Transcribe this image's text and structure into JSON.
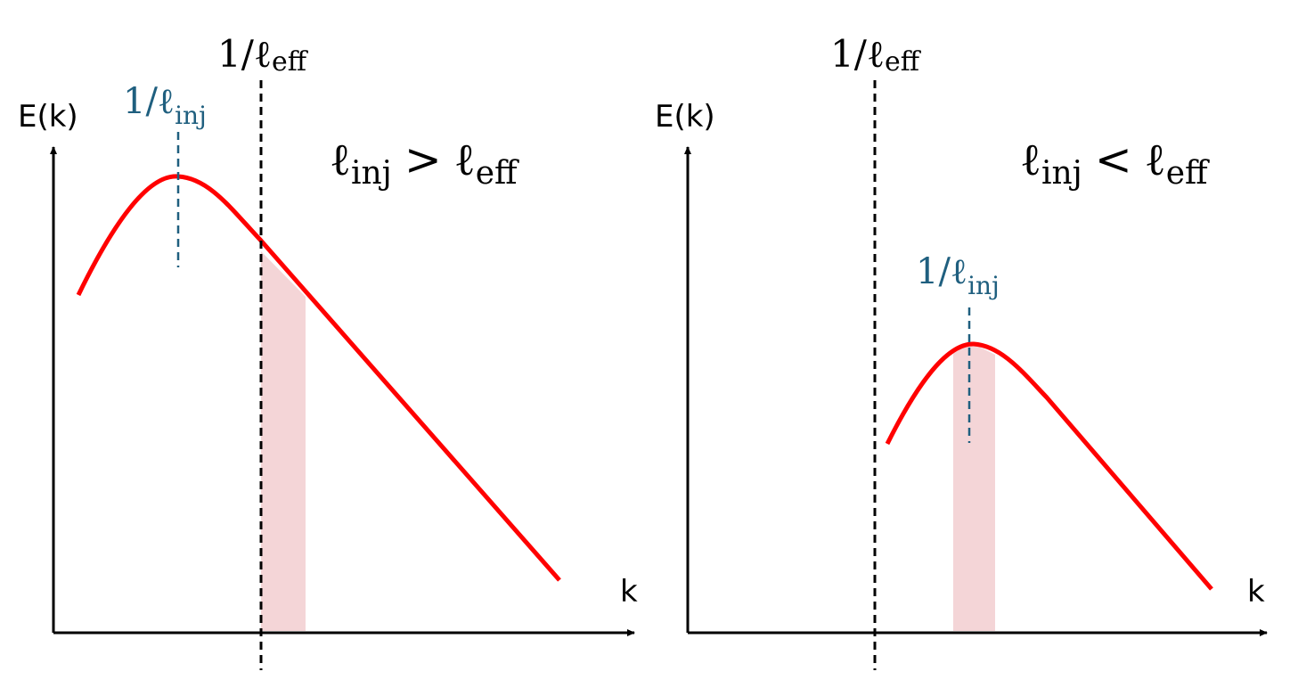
{
  "panels": [
    {
      "y_axis_label": "E(k)",
      "x_axis_label": "k",
      "effective_scale_label": {
        "text": "1/ℓ",
        "subscript": "eff"
      },
      "injection_scale_label": {
        "text": "1/ℓ",
        "subscript": "inj"
      },
      "relation": {
        "left": "ℓ",
        "left_subscript": "inj",
        "operator": ">",
        "right": "ℓ",
        "right_subscript": "eff"
      }
    },
    {
      "y_axis_label": "E(k)",
      "x_axis_label": "k",
      "effective_scale_label": {
        "text": "1/ℓ",
        "subscript": "eff"
      },
      "injection_scale_label": {
        "text": "1/ℓ",
        "subscript": "inj"
      },
      "relation": {
        "left": "ℓ",
        "left_subscript": "inj",
        "operator": "<",
        "right": "ℓ",
        "right_subscript": "eff"
      }
    }
  ]
}
